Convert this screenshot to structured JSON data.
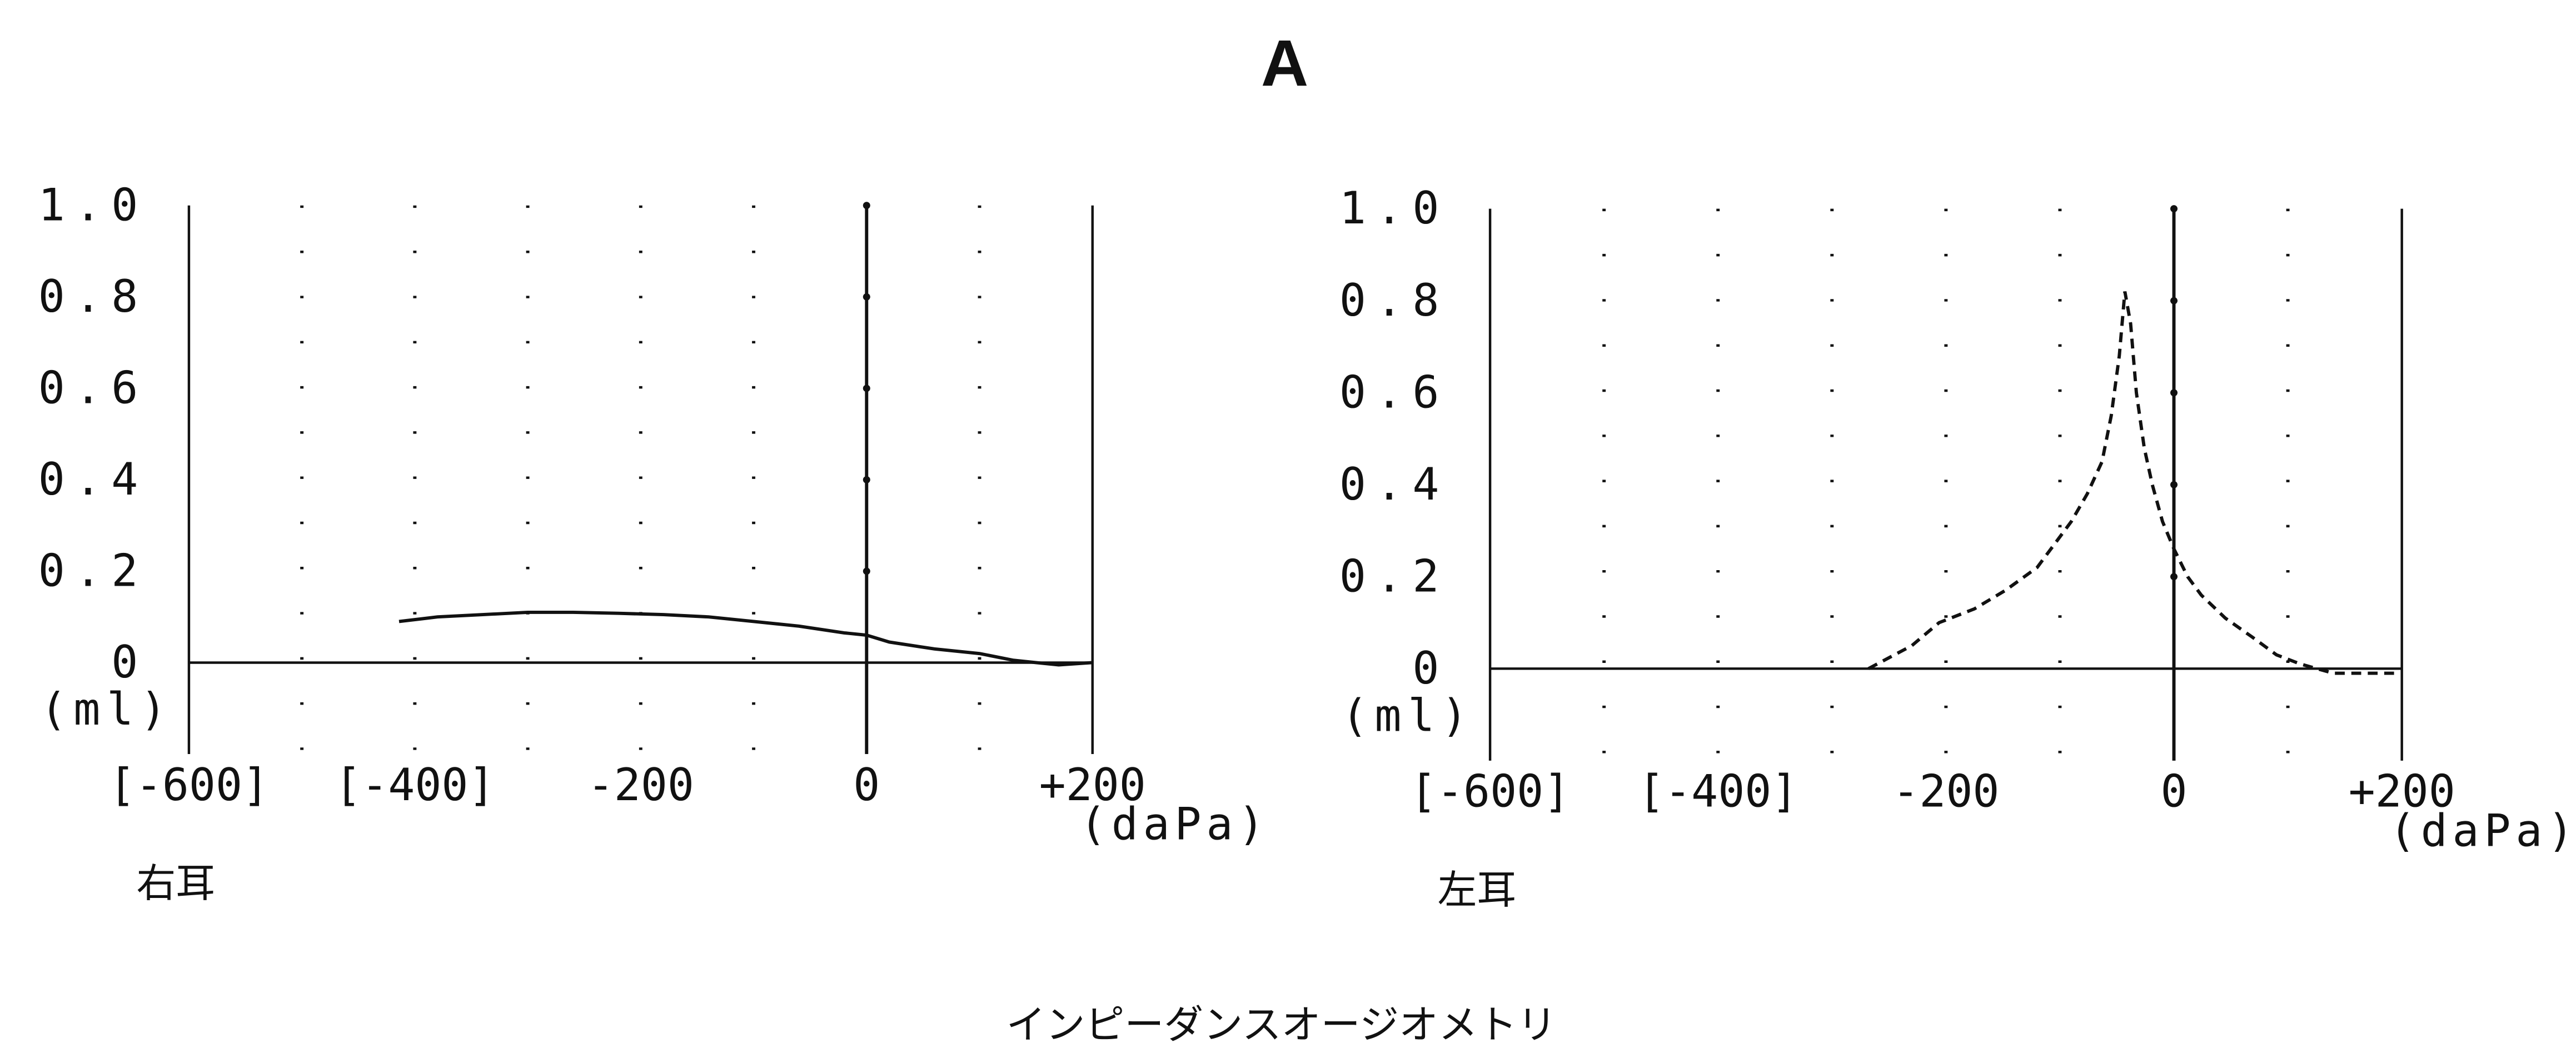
{
  "title": "A",
  "caption": "インピーダンスオージオメトリ",
  "chart_data": [
    {
      "type": "line",
      "subtitle": "右耳",
      "x_label": "(daPa)",
      "y_label": "(ml)",
      "xlim": [
        -600,
        200
      ],
      "ylim": [
        -0.2,
        1.0
      ],
      "xticks": [
        {
          "value": -600,
          "label": "[-600]"
        },
        {
          "value": -400,
          "label": "[-400]"
        },
        -200,
        0,
        {
          "value": 200,
          "label": "+200"
        }
      ],
      "xgrid": [
        -500,
        -300,
        -100,
        100
      ],
      "yticks": [
        0,
        0.2,
        0.4,
        0.6,
        0.8,
        {
          "value": 1.0,
          "label": "1.0"
        }
      ],
      "x": [
        -414,
        -380,
        -340,
        -300,
        -260,
        -220,
        -180,
        -140,
        -100,
        -60,
        -20,
        0,
        20,
        60,
        100,
        130,
        150,
        170,
        200
      ],
      "series": [
        {
          "color": "#111111",
          "line_style": "solid",
          "values": [
            0.09,
            0.1,
            0.105,
            0.11,
            0.11,
            0.108,
            0.105,
            0.1,
            0.09,
            0.08,
            0.065,
            0.06,
            0.045,
            0.03,
            0.02,
            0.005,
            0.0,
            -0.005,
            0.0
          ]
        }
      ]
    },
    {
      "type": "line",
      "subtitle": "左耳",
      "x_label": "(daPa)",
      "y_label": "(ml)",
      "xlim": [
        -600,
        200
      ],
      "ylim": [
        -0.2,
        1.0
      ],
      "xticks": [
        {
          "value": -600,
          "label": "[-600]"
        },
        {
          "value": -400,
          "label": "[-400]"
        },
        -200,
        0,
        {
          "value": 200,
          "label": "+200"
        }
      ],
      "xgrid": [
        -500,
        -300,
        -100,
        100
      ],
      "yticks": [
        0,
        0.2,
        0.4,
        0.6,
        0.8,
        {
          "value": 1.0,
          "label": "1.0"
        }
      ],
      "x": [
        -268,
        -230,
        -206,
        -175,
        -148,
        -120,
        -105,
        -90,
        -76,
        -63,
        -55,
        -48,
        -43,
        -38,
        -33,
        -26,
        -19,
        -10,
        0,
        12,
        24,
        45,
        68,
        90,
        111,
        140,
        170,
        197
      ],
      "series": [
        {
          "color": "#111111",
          "line_style": "dashed",
          "values": [
            0.0,
            0.05,
            0.1,
            0.13,
            0.17,
            0.22,
            0.27,
            0.32,
            0.38,
            0.45,
            0.55,
            0.68,
            0.82,
            0.75,
            0.6,
            0.48,
            0.4,
            0.32,
            0.26,
            0.2,
            0.16,
            0.11,
            0.07,
            0.03,
            0.01,
            -0.01,
            -0.01,
            -0.01
          ]
        }
      ]
    }
  ]
}
